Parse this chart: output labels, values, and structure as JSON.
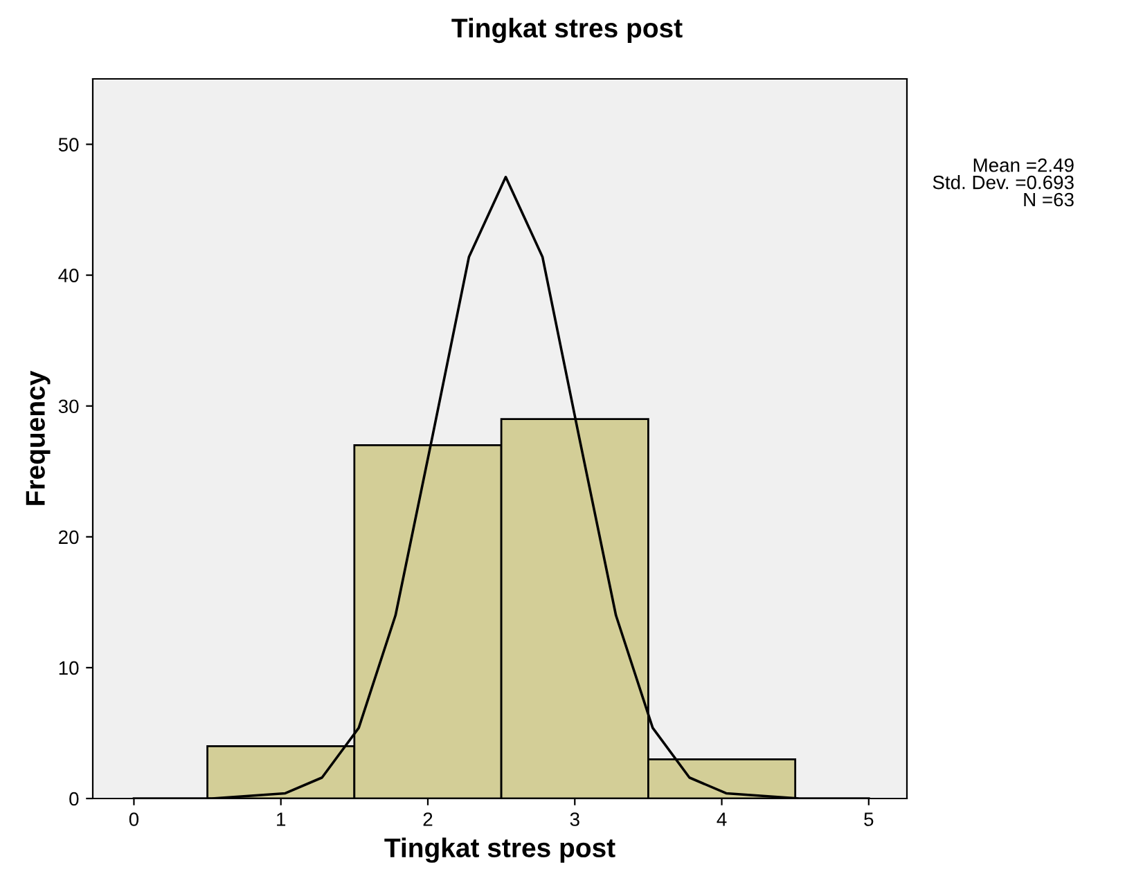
{
  "chart_data": {
    "type": "histogram",
    "title": "Tingkat stres post",
    "xlabel": "Tingkat stres post",
    "ylabel": "Frequency",
    "bins": [
      0.5,
      1.5,
      2.5,
      3.5,
      4.5
    ],
    "values": [
      4,
      27,
      29,
      3
    ],
    "color": "#d3ce97",
    "series": [
      {
        "type": "line",
        "color": "#000000",
        "x": [
          0,
          0.53,
          1.03,
          1.28,
          1.53,
          1.78,
          2.03,
          2.28,
          2.53,
          2.78,
          3.03,
          3.28,
          3.53,
          3.78,
          4.03,
          4.53,
          5
        ],
        "values": [
          0,
          0,
          0.4,
          1.6,
          5.4,
          14,
          27.6,
          41.4,
          47.5,
          41.4,
          27.6,
          14,
          5.4,
          1.6,
          0.4,
          0,
          0
        ]
      }
    ],
    "xlim": [
      -0.28,
      5.26
    ],
    "ylim": [
      0,
      55
    ],
    "xticks": [
      0,
      1,
      2,
      3,
      4,
      5
    ],
    "yticks": [
      0,
      10,
      20,
      30,
      40,
      50
    ],
    "grid": false,
    "legend": false,
    "annotations": [
      "Mean =2.49\nStd. Dev. =0.693\nN =63"
    ]
  }
}
